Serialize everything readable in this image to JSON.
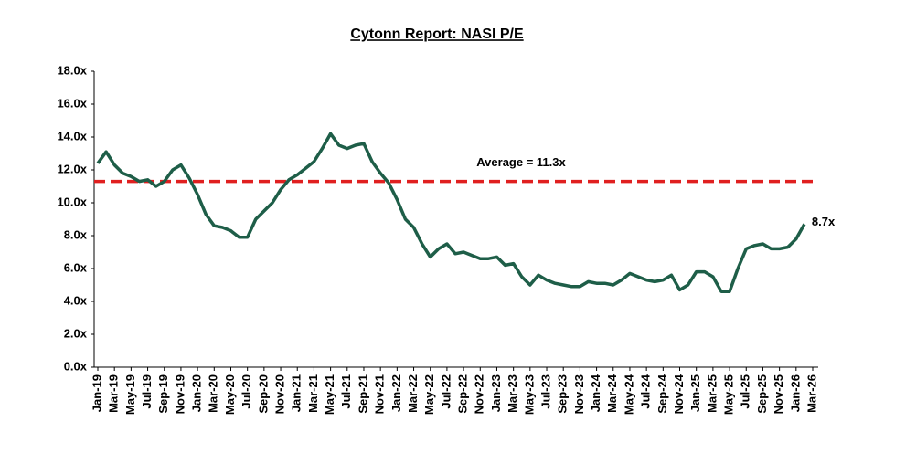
{
  "chart_data": {
    "type": "line",
    "title": "Cytonn Report: NASI P/E",
    "categories": [
      "Jan-19",
      null,
      "Mar-19",
      null,
      "May-19",
      null,
      "Jul-19",
      null,
      "Sep-19",
      null,
      "Nov-19",
      null,
      "Jan-20",
      null,
      "Mar-20",
      null,
      "May-20",
      null,
      "Jul-20",
      null,
      "Sep-20",
      null,
      "Nov-20",
      null,
      "Jan-21",
      null,
      "Mar-21",
      null,
      "May-21",
      null,
      "Jul-21",
      null,
      "Sep-21",
      null,
      "Nov-21",
      null,
      "Jan-22",
      null,
      "Mar-22",
      null,
      "May-22",
      null,
      "Jul-22",
      null,
      "Sep-22",
      null,
      "Nov-22",
      null,
      "Jan-23",
      null,
      "Mar-23",
      null,
      "May-23",
      null,
      "Jul-23",
      null,
      "Sep-23",
      null,
      "Nov-23",
      null,
      "Jan-24",
      null,
      "Mar-24",
      null,
      "May-24",
      null,
      "Jul-24",
      null,
      "Sep-24",
      null,
      "Nov-24",
      null,
      "Jan-25",
      null,
      "Mar-25",
      null,
      "May-25",
      null,
      "Jul-25",
      null,
      "Sep-25",
      null,
      "Nov-25",
      null,
      "Jan-26",
      null,
      "Mar-26"
    ],
    "series": [
      {
        "name": "NASI P/E",
        "color": "#1e5e48",
        "values": [
          12.4,
          13.1,
          12.3,
          11.8,
          11.6,
          11.3,
          11.4,
          11.0,
          11.3,
          12.0,
          12.3,
          11.5,
          10.5,
          9.3,
          8.6,
          8.5,
          8.3,
          7.9,
          7.9,
          9.0,
          9.5,
          10.0,
          10.8,
          11.4,
          11.7,
          12.1,
          12.5,
          13.3,
          14.2,
          13.5,
          13.3,
          13.5,
          13.6,
          12.5,
          11.8,
          11.2,
          10.2,
          9.0,
          8.5,
          7.5,
          6.7,
          7.2,
          7.5,
          6.9,
          7.0,
          6.8,
          6.6,
          6.6,
          6.7,
          6.2,
          6.3,
          5.5,
          5.0,
          5.6,
          5.3,
          5.1,
          5.0,
          4.9,
          4.9,
          5.2,
          5.1,
          5.1,
          5.0,
          5.3,
          5.7,
          5.5,
          5.3,
          5.2,
          5.3,
          5.6,
          4.7,
          5.0,
          5.8,
          5.8,
          5.5,
          4.6,
          4.6,
          6.0,
          7.2,
          7.4,
          7.5,
          7.2,
          7.2,
          7.3,
          7.8,
          8.7,
          null
        ],
        "value_labels": [
          null,
          null,
          null,
          null,
          null,
          null,
          null,
          null,
          null,
          null,
          null,
          null,
          null,
          null,
          null,
          null,
          null,
          null,
          null,
          null,
          null,
          null,
          null,
          null,
          null,
          null,
          null,
          null,
          null,
          null,
          null,
          null,
          null,
          null,
          null,
          null,
          null,
          null,
          null,
          null,
          null,
          null,
          null,
          null,
          null,
          null,
          null,
          null,
          null,
          null,
          null,
          null,
          null,
          null,
          null,
          null,
          null,
          null,
          null,
          null,
          null,
          null,
          null,
          null,
          null,
          null,
          null,
          null,
          null,
          null,
          null,
          null,
          null,
          null,
          null,
          null,
          null,
          null,
          null,
          null,
          null,
          null,
          null,
          null,
          null,
          "8.7x",
          null
        ]
      }
    ],
    "average": {
      "value": 11.3,
      "label": "Average = 11.3x",
      "color": "#e02020"
    },
    "ylim": [
      0,
      18
    ],
    "yticks": [
      {
        "value": 0,
        "label": "0.0x"
      },
      {
        "value": 2,
        "label": "2.0x"
      },
      {
        "value": 4,
        "label": "4.0x"
      },
      {
        "value": 6,
        "label": "6.0x"
      },
      {
        "value": 8,
        "label": "8.0x"
      },
      {
        "value": 10,
        "label": "10.0x"
      },
      {
        "value": 12,
        "label": "12.0x"
      },
      {
        "value": 14,
        "label": "14.0x"
      },
      {
        "value": 16,
        "label": "16.0x"
      },
      {
        "value": 18,
        "label": "18.0x"
      }
    ],
    "grid": false
  }
}
